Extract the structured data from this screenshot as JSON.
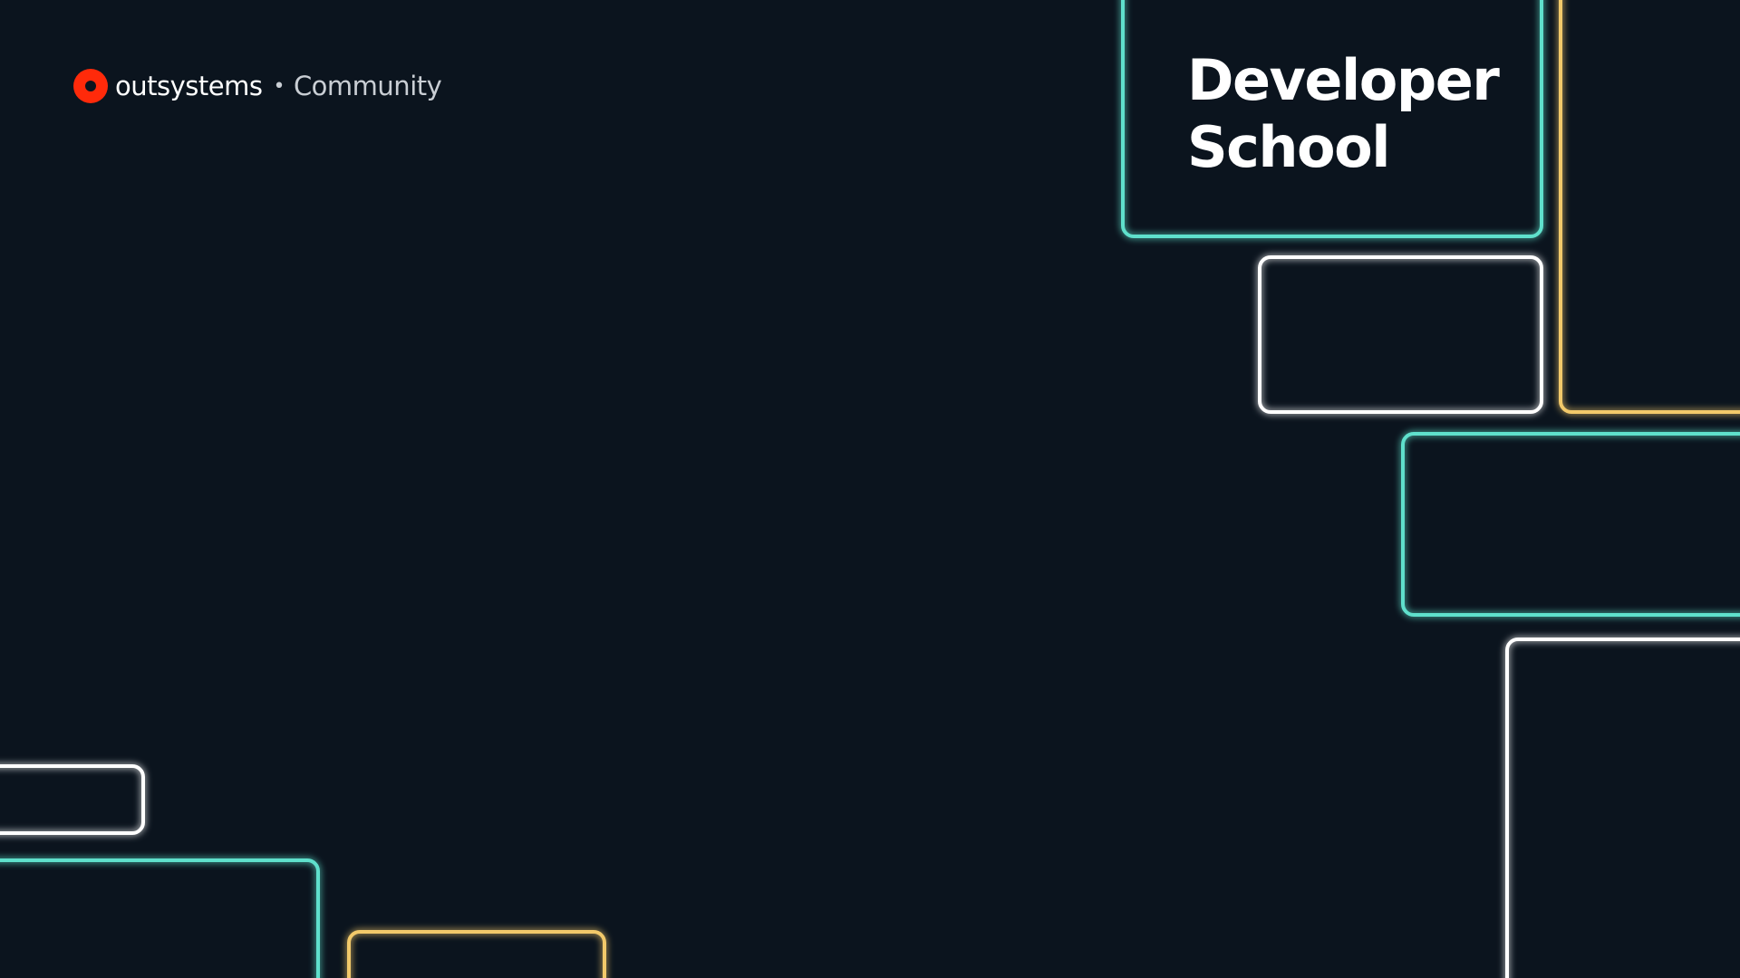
{
  "brand": {
    "logo_icon": "outsystems-logo-icon",
    "name": "outsystems",
    "separator": "•",
    "community": "Community"
  },
  "title": {
    "line1": "Developer",
    "line2": "School"
  },
  "colors": {
    "background": "#0b141e",
    "teal": "#5fe0cc",
    "white": "#ffffff",
    "yellow": "#f2c96a",
    "logo_red": "#ff2a0a"
  }
}
